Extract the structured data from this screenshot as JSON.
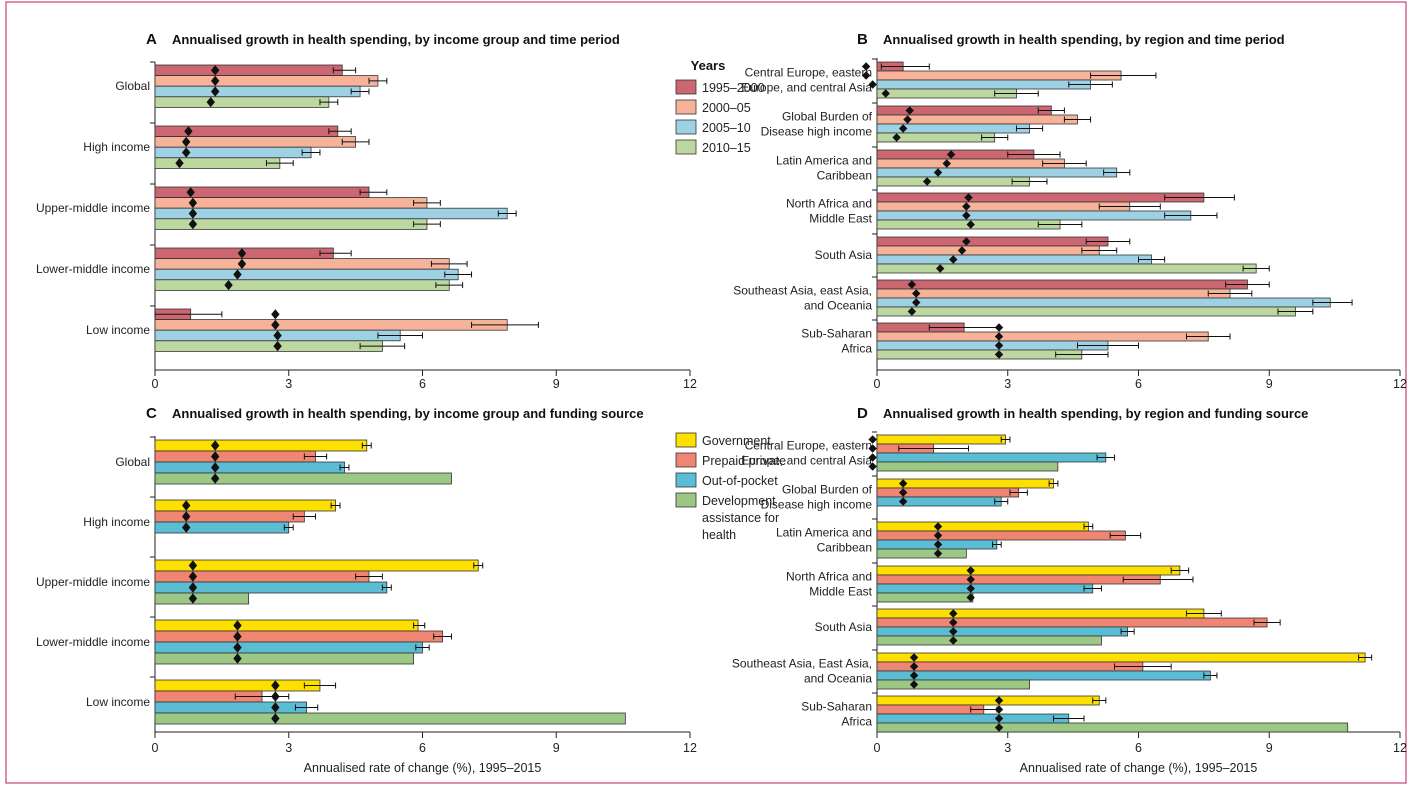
{
  "chart_data": [
    {
      "id": "A",
      "type": "bar",
      "orientation": "horizontal",
      "title": "Annualised growth in health spending, by income group and time period",
      "categories": [
        "Global",
        "High income",
        "Upper-middle income",
        "Lower-middle income",
        "Low income"
      ],
      "series": [
        {
          "name": "1995–2000",
          "color": "#cc6670",
          "values": [
            4.2,
            4.1,
            4.8,
            4.0,
            0.8
          ],
          "ci": [
            [
              4.0,
              4.5
            ],
            [
              3.9,
              4.4
            ],
            [
              4.6,
              5.2
            ],
            [
              3.7,
              4.4
            ],
            [
              0.0,
              1.5
            ]
          ],
          "marker": [
            1.35,
            0.75,
            0.8,
            1.95,
            2.7
          ]
        },
        {
          "name": "2000–05",
          "color": "#f7b39a",
          "values": [
            5.0,
            4.5,
            6.1,
            6.6,
            7.9
          ],
          "ci": [
            [
              4.8,
              5.2
            ],
            [
              4.2,
              4.8
            ],
            [
              5.8,
              6.4
            ],
            [
              6.2,
              7.0
            ],
            [
              7.1,
              8.6
            ]
          ],
          "marker": [
            1.35,
            0.7,
            0.85,
            1.95,
            2.7
          ]
        },
        {
          "name": "2005–10",
          "color": "#9fd1e4",
          "values": [
            4.6,
            3.5,
            7.9,
            6.8,
            5.5
          ],
          "ci": [
            [
              4.4,
              4.8
            ],
            [
              3.3,
              3.7
            ],
            [
              7.7,
              8.1
            ],
            [
              6.5,
              7.1
            ],
            [
              5.0,
              6.0
            ]
          ],
          "marker": [
            1.35,
            0.7,
            0.85,
            1.85,
            2.75
          ]
        },
        {
          "name": "2010–15",
          "color": "#bcd8a0",
          "values": [
            3.9,
            2.8,
            6.1,
            6.6,
            5.1
          ],
          "ci": [
            [
              3.7,
              4.1
            ],
            [
              2.5,
              3.1
            ],
            [
              5.8,
              6.4
            ],
            [
              6.3,
              6.9
            ],
            [
              4.6,
              5.6
            ]
          ],
          "marker": [
            1.25,
            0.55,
            0.85,
            1.65,
            2.75
          ]
        }
      ],
      "xlim": [
        0,
        12
      ],
      "xticks": [
        "0",
        "3",
        "6",
        "9",
        "12"
      ],
      "xlabel": ""
    },
    {
      "id": "B",
      "type": "bar",
      "orientation": "horizontal",
      "title": "Annualised growth in health spending, by region and time period",
      "categories": [
        [
          "Central Europe, eastern",
          "Europe, and central Asia"
        ],
        [
          "Global Burden of",
          "Disease high income"
        ],
        [
          "Latin America and",
          "Caribbean"
        ],
        [
          "North Africa and",
          "Middle East"
        ],
        [
          "South Asia"
        ],
        [
          "Southeast Asia, east Asia,",
          "and Oceania"
        ],
        [
          "Sub-Saharan",
          "Africa"
        ]
      ],
      "series": [
        {
          "name": "1995–2000",
          "color": "#cc6670",
          "values": [
            0.6,
            4.0,
            3.6,
            7.5,
            5.3,
            8.5,
            2.0
          ],
          "ci": [
            [
              0.1,
              1.2
            ],
            [
              3.7,
              4.3
            ],
            [
              3.0,
              4.2
            ],
            [
              6.6,
              8.2
            ],
            [
              4.8,
              5.8
            ],
            [
              8.0,
              9.0
            ],
            [
              1.2,
              2.8
            ]
          ],
          "marker": [
            -0.25,
            0.75,
            1.7,
            2.1,
            2.05,
            0.8,
            2.8
          ]
        },
        {
          "name": "2000–05",
          "color": "#f7b39a",
          "values": [
            5.6,
            4.6,
            4.3,
            5.8,
            5.1,
            8.1,
            7.6
          ],
          "ci": [
            [
              4.9,
              6.4
            ],
            [
              4.3,
              4.9
            ],
            [
              3.8,
              4.8
            ],
            [
              5.1,
              6.5
            ],
            [
              4.7,
              5.5
            ],
            [
              7.6,
              8.6
            ],
            [
              7.1,
              8.1
            ]
          ],
          "marker": [
            -0.25,
            0.7,
            1.6,
            2.05,
            1.95,
            0.9,
            2.8
          ]
        },
        {
          "name": "2005–10",
          "color": "#9fd1e4",
          "values": [
            4.9,
            3.5,
            5.5,
            7.2,
            6.3,
            10.4,
            5.3
          ],
          "ci": [
            [
              4.4,
              5.4
            ],
            [
              3.2,
              3.8
            ],
            [
              5.2,
              5.8
            ],
            [
              6.6,
              7.8
            ],
            [
              6.0,
              6.6
            ],
            [
              10.0,
              10.9
            ],
            [
              4.6,
              6.0
            ]
          ],
          "marker": [
            -0.1,
            0.6,
            1.4,
            2.05,
            1.75,
            0.9,
            2.8
          ]
        },
        {
          "name": "2010–15",
          "color": "#bcd8a0",
          "values": [
            3.2,
            2.7,
            3.5,
            4.2,
            8.7,
            9.6,
            4.7
          ],
          "ci": [
            [
              2.7,
              3.7
            ],
            [
              2.4,
              3.0
            ],
            [
              3.1,
              3.9
            ],
            [
              3.7,
              4.7
            ],
            [
              8.4,
              9.0
            ],
            [
              9.2,
              10.0
            ],
            [
              4.1,
              5.3
            ]
          ],
          "marker": [
            0.2,
            0.45,
            1.15,
            2.15,
            1.45,
            0.8,
            2.8
          ]
        }
      ],
      "xlim": [
        0,
        12
      ],
      "xticks": [
        "0",
        "3",
        "6",
        "9",
        "12"
      ],
      "xlabel": ""
    },
    {
      "id": "C",
      "type": "bar",
      "orientation": "horizontal",
      "title": "Annualised growth in health spending, by income group and funding source",
      "categories": [
        "Global",
        "High income",
        "Upper-middle income",
        "Lower-middle income",
        "Low income"
      ],
      "series": [
        {
          "name": "Government",
          "color": "#fde000",
          "values": [
            4.75,
            4.05,
            7.25,
            5.9,
            3.7
          ],
          "ci": [
            [
              4.65,
              4.85
            ],
            [
              3.95,
              4.15
            ],
            [
              7.15,
              7.35
            ],
            [
              5.8,
              6.05
            ],
            [
              3.35,
              4.05
            ]
          ],
          "marker": [
            1.35,
            0.7,
            0.85,
            1.85,
            2.7
          ]
        },
        {
          "name": "Prepaid private",
          "color": "#ef8572",
          "values": [
            3.6,
            3.35,
            4.8,
            6.45,
            2.4
          ],
          "ci": [
            [
              3.35,
              3.85
            ],
            [
              3.1,
              3.6
            ],
            [
              4.5,
              5.1
            ],
            [
              6.25,
              6.65
            ],
            [
              1.8,
              3.0
            ]
          ],
          "marker": [
            1.35,
            0.7,
            0.85,
            1.85,
            2.7
          ]
        },
        {
          "name": "Out-of-pocket",
          "color": "#5bbdd4",
          "values": [
            4.25,
            3.0,
            5.2,
            6.0,
            3.4
          ],
          "ci": [
            [
              4.15,
              4.35
            ],
            [
              2.9,
              3.1
            ],
            [
              5.1,
              5.3
            ],
            [
              5.85,
              6.15
            ],
            [
              3.15,
              3.65
            ]
          ],
          "marker": [
            1.35,
            0.7,
            0.85,
            1.85,
            2.7
          ]
        },
        {
          "name": "Development assistance for health",
          "color": "#9cc785",
          "values": [
            6.65,
            null,
            2.1,
            5.8,
            10.55
          ],
          "ci": [
            null,
            null,
            null,
            null,
            null
          ],
          "marker": [
            1.35,
            null,
            0.85,
            1.85,
            2.7
          ]
        }
      ],
      "legend_lines": [
        [
          "Government"
        ],
        [
          "Prepaid private"
        ],
        [
          "Out-of-pocket"
        ],
        [
          "Development",
          "assistance for",
          "health"
        ]
      ],
      "xlim": [
        0,
        12
      ],
      "xticks": [
        "0",
        "3",
        "6",
        "9",
        "12"
      ],
      "xlabel": "Annualised rate of change (%), 1995–2015"
    },
    {
      "id": "D",
      "type": "bar",
      "orientation": "horizontal",
      "title": "Annualised growth in health spending, by region and funding source",
      "categories": [
        [
          "Central Europe, eastern",
          "Europe, and central Asia"
        ],
        [
          "Global Burden of",
          "Disease high income"
        ],
        [
          "Latin America and",
          "Caribbean"
        ],
        [
          "North Africa and",
          "Middle East"
        ],
        [
          "South Asia"
        ],
        [
          "Southeast Asia, East Asia,",
          "and Oceania"
        ],
        [
          "Sub-Saharan",
          "Africa"
        ]
      ],
      "series": [
        {
          "name": "Government",
          "color": "#fde000",
          "values": [
            2.95,
            4.05,
            4.85,
            6.95,
            7.5,
            11.2,
            5.1
          ],
          "ci": [
            [
              2.85,
              3.05
            ],
            [
              3.95,
              4.15
            ],
            [
              4.75,
              4.95
            ],
            [
              6.75,
              7.15
            ],
            [
              7.1,
              7.9
            ],
            [
              11.05,
              11.35
            ],
            [
              4.95,
              5.25
            ]
          ],
          "marker": [
            -0.1,
            0.6,
            1.4,
            2.15,
            1.75,
            0.85,
            2.8
          ]
        },
        {
          "name": "Prepaid private",
          "color": "#ef8572",
          "values": [
            1.3,
            3.25,
            5.7,
            6.5,
            8.95,
            6.1,
            2.45
          ],
          "ci": [
            [
              0.5,
              2.1
            ],
            [
              3.05,
              3.45
            ],
            [
              5.35,
              6.05
            ],
            [
              5.65,
              7.25
            ],
            [
              8.65,
              9.25
            ],
            [
              5.45,
              6.75
            ],
            [
              2.15,
              2.75
            ]
          ],
          "marker": [
            -0.1,
            0.6,
            1.4,
            2.15,
            1.75,
            0.85,
            2.8
          ]
        },
        {
          "name": "Out-of-pocket",
          "color": "#5bbdd4",
          "values": [
            5.25,
            2.85,
            2.75,
            4.95,
            5.75,
            7.65,
            4.4
          ],
          "ci": [
            [
              5.05,
              5.45
            ],
            [
              2.7,
              3.0
            ],
            [
              2.65,
              2.85
            ],
            [
              4.75,
              5.15
            ],
            [
              5.6,
              5.9
            ],
            [
              7.5,
              7.8
            ],
            [
              4.05,
              4.75
            ]
          ],
          "marker": [
            -0.1,
            0.6,
            1.4,
            2.15,
            1.75,
            0.85,
            2.8
          ]
        },
        {
          "name": "Development assistance for health",
          "color": "#9cc785",
          "values": [
            4.15,
            null,
            2.05,
            2.2,
            5.15,
            3.5,
            10.8
          ],
          "ci": [
            null,
            null,
            null,
            null,
            null,
            null,
            null
          ],
          "marker": [
            -0.1,
            null,
            1.4,
            2.15,
            1.75,
            0.85,
            2.8
          ]
        }
      ],
      "xlim": [
        0,
        12
      ],
      "xticks": [
        "0",
        "3",
        "6",
        "9",
        "12"
      ],
      "xlabel": "Annualised rate of change (%), 1995–2015"
    }
  ],
  "legend_years_title": "Years",
  "colors": {
    "frame": "#c8407a",
    "axis": "#222222",
    "bar_stroke": "#333333"
  }
}
